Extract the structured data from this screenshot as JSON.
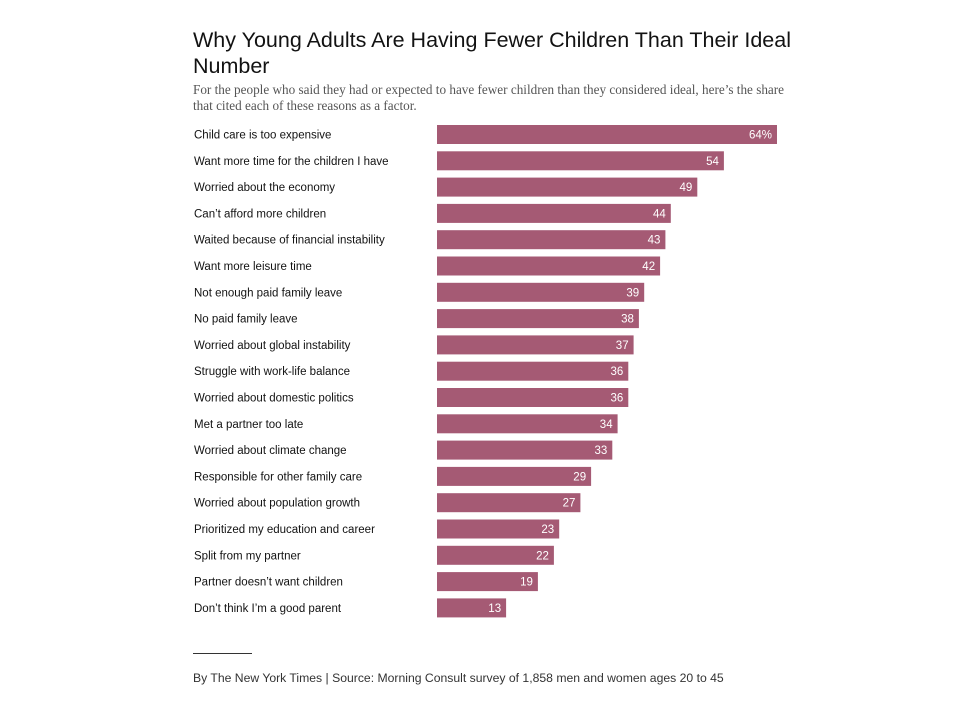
{
  "chart_data": {
    "type": "bar",
    "orientation": "horizontal",
    "title": "Why Young Adults Are Having Fewer Children Than Their Ideal Number",
    "subtitle": "For the people who said they had or expected to have fewer children than they considered ideal, here’s the share that cited each of these reasons as a factor.",
    "categories": [
      "Child care is too expensive",
      "Want more time for the children I have",
      "Worried about the economy",
      "Can’t afford more children",
      "Waited because of financial instability",
      "Want more leisure time",
      "Not enough paid family leave",
      "No paid family leave",
      "Worried about global instability",
      "Struggle with work-life balance",
      "Worried about domestic politics",
      "Met a partner too late",
      "Worried about climate change",
      "Responsible for other family care",
      "Worried about population growth",
      "Prioritized my education and career",
      "Split from my partner",
      "Partner doesn’t want children",
      "Don’t think I’m a good parent"
    ],
    "values": [
      64,
      54,
      49,
      44,
      43,
      42,
      39,
      38,
      37,
      36,
      36,
      34,
      33,
      29,
      27,
      23,
      22,
      19,
      13
    ],
    "value_labels": [
      "64%",
      "54",
      "49",
      "44",
      "43",
      "42",
      "39",
      "38",
      "37",
      "36",
      "36",
      "34",
      "33",
      "29",
      "27",
      "23",
      "22",
      "19",
      "13"
    ],
    "unit": "%",
    "xlim": [
      0,
      64
    ],
    "bar_color": "#a55a74",
    "xlabel": "",
    "ylabel": ""
  },
  "footer": {
    "source": "By The New York Times | Source: Morning Consult survey of 1,858 men and women ages 20 to 45"
  }
}
